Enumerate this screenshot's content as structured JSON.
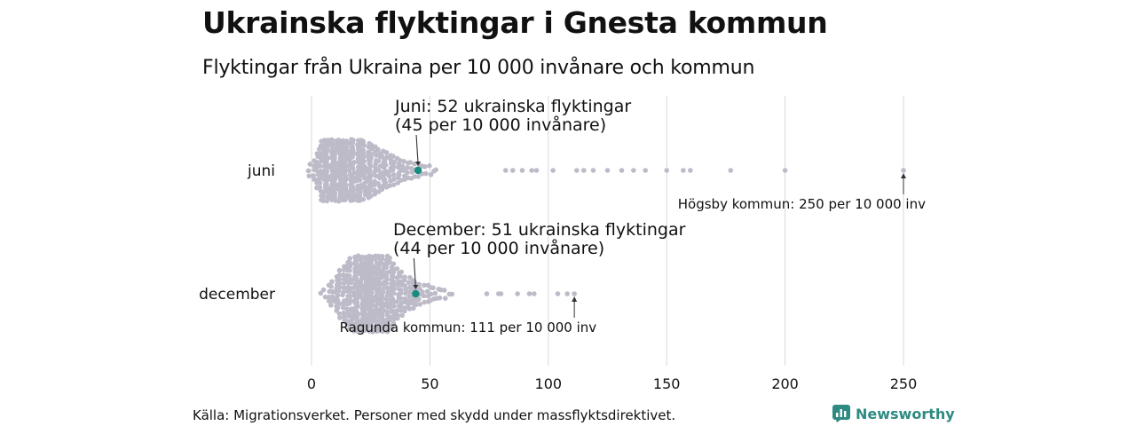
{
  "title": "Ukrainska flyktingar i Gnesta kommun",
  "subtitle": "Flyktingar från Ukraina per 10 000 invånare och kommun",
  "source": "Källa: Migrationsverket. Personer med skydd under massflyktsdirektivet.",
  "brand": {
    "name": "Newsworthy",
    "icon": "bar-chart-logo-icon",
    "color": "#2e8b82"
  },
  "colors": {
    "dot": "#bdbbc8",
    "highlight": "#1a8a80",
    "grid": "#d9d9d9",
    "text": "#111111"
  },
  "chart_data": {
    "type": "beeswarm",
    "x_ticks": [
      0,
      50,
      100,
      150,
      200,
      250
    ],
    "xlim": [
      0,
      250
    ],
    "grid": true,
    "categories": [
      "juni",
      "december"
    ],
    "rows": [
      {
        "category": "juni",
        "highlight": {
          "value": 45,
          "label_line1": "Juni: 52 ukrainska flyktingar",
          "label_line2": "(45 per 10 000 invånare)"
        },
        "max": {
          "value": 250,
          "label": "Högsby kommun: 250 per 10 000 inv"
        },
        "outliers": [
          82,
          85,
          89,
          93,
          95,
          102,
          112,
          115,
          119,
          125,
          131,
          136,
          141,
          150,
          157,
          160,
          177,
          200,
          250
        ]
      },
      {
        "category": "december",
        "highlight": {
          "value": 44,
          "label_line1": "December: 51 ukrainska flyktingar",
          "label_line2": "(44 per 10 000 invånare)"
        },
        "max": {
          "value": 111,
          "label": "Ragunda kommun: 111 per 10 000 inv"
        },
        "outliers": [
          74,
          79,
          80,
          87,
          92,
          94,
          104,
          108,
          111
        ]
      }
    ]
  }
}
